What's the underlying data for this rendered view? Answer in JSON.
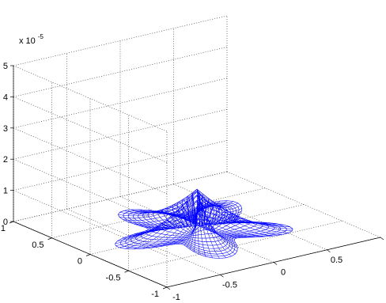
{
  "chart_data": {
    "type": "surface",
    "title": "",
    "xlabel": "",
    "ylabel": "",
    "zlabel": "",
    "grid": true,
    "mesh_color": "#0000ff",
    "axis_color": "#000000",
    "background": "#ffffff",
    "xlim": [
      -1,
      1
    ],
    "ylim": [
      -1,
      1
    ],
    "zlim": [
      0,
      5e-05
    ],
    "x_ticks": [
      "-1",
      "-0.5",
      "0",
      "0.5",
      "1"
    ],
    "y_ticks": [
      "-1",
      "-0.5",
      "0",
      "0.5",
      "1"
    ],
    "z_ticks": [
      "0",
      "1",
      "2",
      "3",
      "4",
      "5"
    ],
    "z_multiplier": {
      "base": "x 10",
      "exponent": "-5"
    },
    "surface": {
      "description_free": true,
      "shape": "five-lobed star membrane",
      "lobes": 5,
      "boundary_radius_mean": 0.55,
      "boundary_radius_amplitude": 0.18,
      "peak_z": 1.3e-05
    }
  }
}
